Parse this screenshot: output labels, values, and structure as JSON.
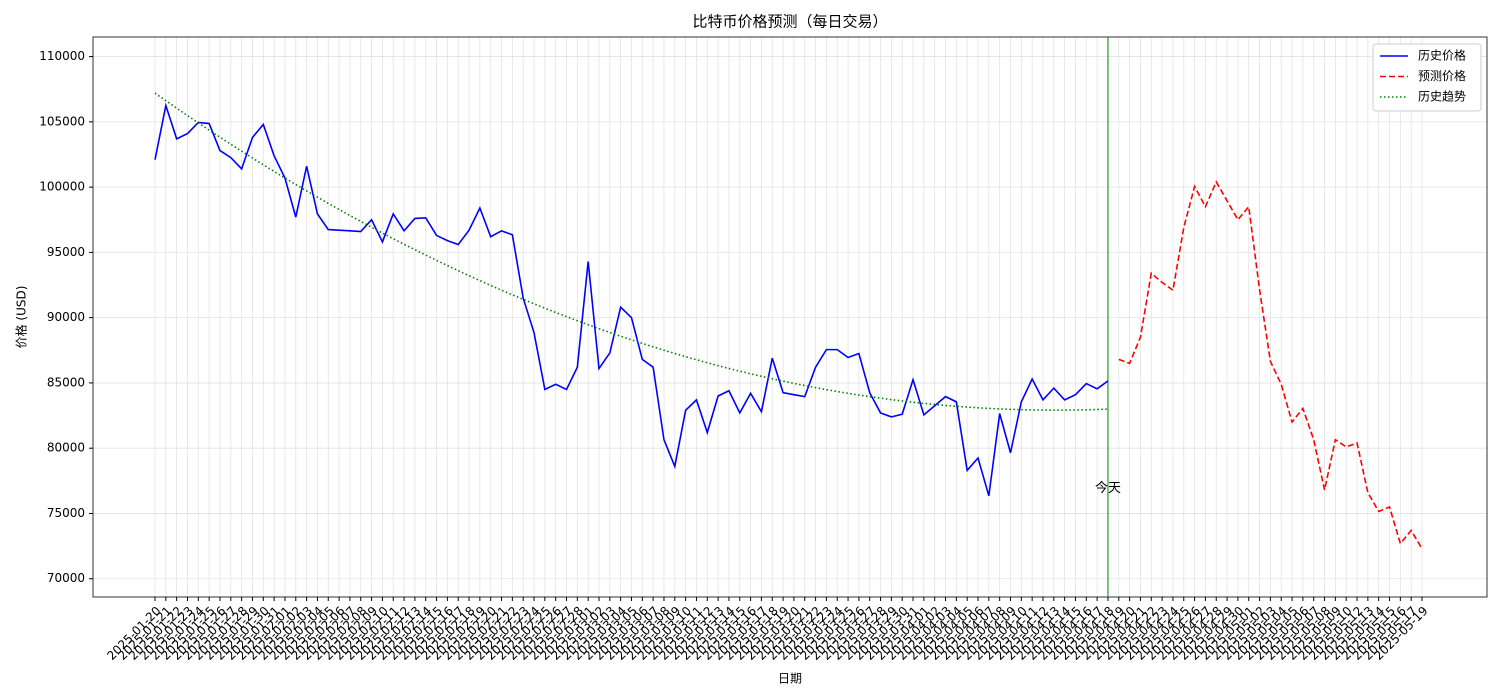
{
  "chart_data": {
    "type": "line",
    "title": "比特币价格预测（每日交易）",
    "xlabel": "日期",
    "ylabel": "价格 (USD)",
    "categories": [
      "2025-01-20",
      "2025-01-21",
      "2025-01-22",
      "2025-01-23",
      "2025-01-24",
      "2025-01-25",
      "2025-01-26",
      "2025-01-27",
      "2025-01-28",
      "2025-01-29",
      "2025-01-30",
      "2025-01-31",
      "2025-02-01",
      "2025-02-02",
      "2025-02-03",
      "2025-02-04",
      "2025-02-05",
      "2025-02-06",
      "2025-02-07",
      "2025-02-08",
      "2025-02-09",
      "2025-02-10",
      "2025-02-11",
      "2025-02-12",
      "2025-02-13",
      "2025-02-14",
      "2025-02-15",
      "2025-02-16",
      "2025-02-17",
      "2025-02-18",
      "2025-02-19",
      "2025-02-20",
      "2025-02-21",
      "2025-02-22",
      "2025-02-23",
      "2025-02-24",
      "2025-02-25",
      "2025-02-26",
      "2025-02-27",
      "2025-02-28",
      "2025-03-01",
      "2025-03-02",
      "2025-03-03",
      "2025-03-04",
      "2025-03-05",
      "2025-03-06",
      "2025-03-07",
      "2025-03-08",
      "2025-03-09",
      "2025-03-10",
      "2025-03-11",
      "2025-03-12",
      "2025-03-13",
      "2025-03-14",
      "2025-03-15",
      "2025-03-16",
      "2025-03-17",
      "2025-03-18",
      "2025-03-19",
      "2025-03-20",
      "2025-03-21",
      "2025-03-22",
      "2025-03-23",
      "2025-03-24",
      "2025-03-25",
      "2025-03-26",
      "2025-03-27",
      "2025-03-28",
      "2025-03-29",
      "2025-03-30",
      "2025-03-31",
      "2025-04-01",
      "2025-04-02",
      "2025-04-03",
      "2025-04-04",
      "2025-04-05",
      "2025-04-06",
      "2025-04-07",
      "2025-04-08",
      "2025-04-09",
      "2025-04-10",
      "2025-04-11",
      "2025-04-12",
      "2025-04-13",
      "2025-04-14",
      "2025-04-15",
      "2025-04-16",
      "2025-04-17",
      "2025-04-18",
      "2025-04-19",
      "2025-04-20",
      "2025-04-21",
      "2025-04-22",
      "2025-04-23",
      "2025-04-24",
      "2025-04-25",
      "2025-04-26",
      "2025-04-27",
      "2025-04-28",
      "2025-04-29",
      "2025-04-30",
      "2025-05-01",
      "2025-05-02",
      "2025-05-03",
      "2025-05-04",
      "2025-05-05",
      "2025-05-06",
      "2025-05-07",
      "2025-05-08",
      "2025-05-09",
      "2025-05-10",
      "2025-05-12",
      "2025-05-13",
      "2025-05-14",
      "2025-05-15",
      "2025-05-16",
      "2025-05-17",
      "2025-05-19"
    ],
    "series": [
      {
        "name": "历史价格",
        "color": "#0000ff",
        "linestyle": "solid",
        "values": [
          102100,
          106250,
          103700,
          104100,
          104950,
          104870,
          102800,
          102260,
          101400,
          103800,
          104800,
          102400,
          100700,
          97700,
          101600,
          97950,
          96750,
          96700,
          96650,
          96600,
          97500,
          95800,
          97950,
          96650,
          97600,
          97650,
          96300,
          95900,
          95600,
          96700,
          98400,
          96200,
          96650,
          96350,
          91500,
          88850,
          84500,
          84900,
          84500,
          86200,
          94300,
          86100,
          87300,
          90800,
          90000,
          86800,
          86200,
          80650,
          78600,
          82900,
          83700,
          81200,
          84000,
          84400,
          82700,
          84200,
          82800,
          86900,
          84250,
          84100,
          83950,
          86200,
          87550,
          87550,
          86950,
          87250,
          84250,
          82700,
          82400,
          82600,
          85250,
          82550,
          83250,
          83950,
          83550,
          78300,
          79250,
          76350,
          82650,
          79650,
          83550,
          85300,
          83700,
          84600,
          83700,
          84100,
          84950,
          84550,
          85150,
          null,
          null,
          null,
          null,
          null,
          null,
          null,
          null,
          null,
          null,
          null,
          null,
          null,
          null,
          null,
          null,
          null,
          null,
          null,
          null,
          null,
          null,
          null,
          null,
          null,
          null,
          null,
          null,
          null
        ]
      },
      {
        "name": "预测价格",
        "color": "#ff0000",
        "linestyle": "dashed",
        "values": [
          null,
          null,
          null,
          null,
          null,
          null,
          null,
          null,
          null,
          null,
          null,
          null,
          null,
          null,
          null,
          null,
          null,
          null,
          null,
          null,
          null,
          null,
          null,
          null,
          null,
          null,
          null,
          null,
          null,
          null,
          null,
          null,
          null,
          null,
          null,
          null,
          null,
          null,
          null,
          null,
          null,
          null,
          null,
          null,
          null,
          null,
          null,
          null,
          null,
          null,
          null,
          null,
          null,
          null,
          null,
          null,
          null,
          null,
          null,
          null,
          null,
          null,
          null,
          null,
          null,
          null,
          null,
          null,
          null,
          null,
          null,
          null,
          null,
          null,
          null,
          null,
          null,
          null,
          null,
          null,
          null,
          null,
          null,
          null,
          null,
          null,
          null,
          null,
          null,
          86800,
          86500,
          88500,
          93400,
          92700,
          92100,
          96900,
          100050,
          98500,
          100400,
          98950,
          97500,
          98500,
          92150,
          86650,
          84900,
          82000,
          83050,
          80650,
          76800,
          80650,
          80100,
          80400,
          76600,
          75150,
          75500,
          72700,
          73700,
          72300
        ]
      },
      {
        "name": "历史趋势",
        "color": "#008000",
        "linestyle": "dotted",
        "values": [
          107200,
          106619,
          106046,
          105479,
          104920,
          104367,
          103822,
          103283,
          102752,
          102228,
          101710,
          101200,
          100697,
          100200,
          99711,
          99229,
          98754,
          98285,
          97824,
          97370,
          96923,
          96483,
          96050,
          95624,
          95205,
          94793,
          94388,
          93990,
          93599,
          93215,
          92838,
          92468,
          92105,
          91749,
          91401,
          91059,
          90724,
          90396,
          90076,
          89762,
          89455,
          89156,
          88863,
          88577,
          88299,
          88027,
          87763,
          87505,
          87255,
          87011,
          86775,
          86546,
          86323,
          86108,
          85900,
          85698,
          85504,
          85317,
          85137,
          84963,
          84797,
          84638,
          84486,
          84341,
          84203,
          84072,
          83948,
          83831,
          83721,
          83618,
          83522,
          83433,
          83351,
          83276,
          83208,
          83148,
          83094,
          83047,
          83007,
          82975,
          82949,
          82930,
          82919,
          82914,
          82916,
          82926,
          82942,
          82966,
          82996,
          null,
          null,
          null,
          null,
          null,
          null,
          null,
          null,
          null,
          null,
          null,
          null,
          null,
          null,
          null,
          null,
          null,
          null,
          null,
          null,
          null,
          null,
          null,
          null,
          null,
          null,
          null,
          null,
          null
        ]
      }
    ],
    "vline": {
      "x": "2025-04-18",
      "color": "#008000",
      "label": "今天",
      "label_y": 76900
    },
    "ylim": [
      68600,
      111500
    ],
    "yticks": [
      70000,
      75000,
      80000,
      85000,
      90000,
      95000,
      100000,
      105000,
      110000
    ],
    "grid": true,
    "legend": "upper right"
  }
}
